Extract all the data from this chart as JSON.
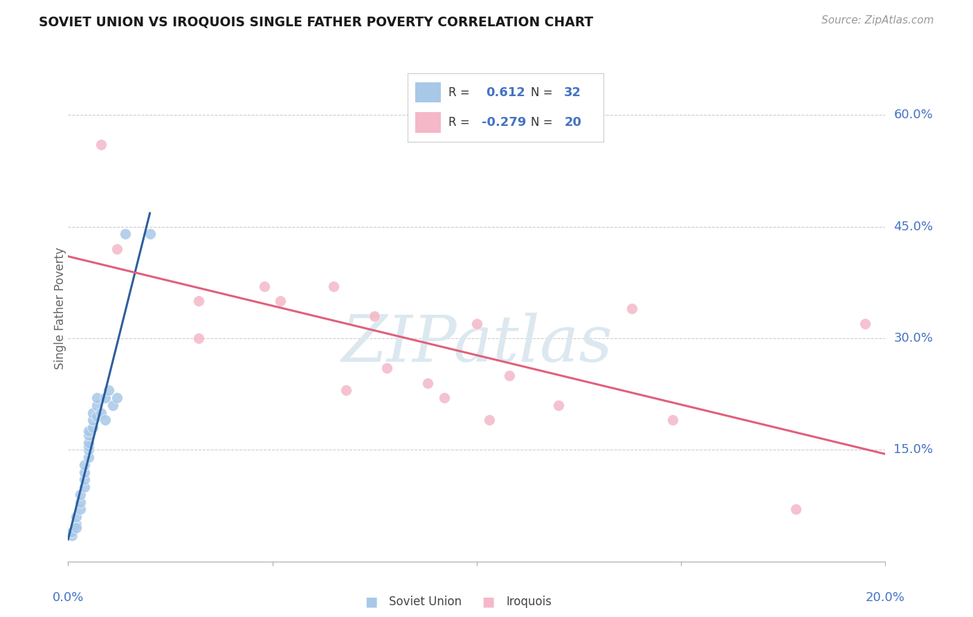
{
  "title": "SOVIET UNION VS IROQUOIS SINGLE FATHER POVERTY CORRELATION CHART",
  "source": "Source: ZipAtlas.com",
  "ylabel": "Single Father Poverty",
  "ytick_labels": [
    "15.0%",
    "30.0%",
    "45.0%",
    "60.0%"
  ],
  "ytick_values": [
    0.15,
    0.3,
    0.45,
    0.6
  ],
  "xlim": [
    0.0,
    0.2
  ],
  "ylim": [
    0.0,
    0.68
  ],
  "legend_blue_R": "0.612",
  "legend_blue_N": "32",
  "legend_pink_R": "-0.279",
  "legend_pink_N": "20",
  "blue_scatter_color": "#a8c8e8",
  "pink_scatter_color": "#f4b8c8",
  "blue_line_color": "#2c5f9e",
  "pink_line_color": "#e0607a",
  "grid_color": "#cccccc",
  "soviet_x": [
    0.001,
    0.001,
    0.002,
    0.002,
    0.002,
    0.003,
    0.003,
    0.003,
    0.004,
    0.004,
    0.004,
    0.004,
    0.005,
    0.005,
    0.005,
    0.005,
    0.005,
    0.005,
    0.006,
    0.006,
    0.006,
    0.007,
    0.007,
    0.007,
    0.008,
    0.009,
    0.009,
    0.01,
    0.011,
    0.012,
    0.014,
    0.02
  ],
  "soviet_y": [
    0.035,
    0.04,
    0.05,
    0.06,
    0.045,
    0.07,
    0.08,
    0.09,
    0.1,
    0.11,
    0.12,
    0.13,
    0.14,
    0.15,
    0.155,
    0.16,
    0.17,
    0.175,
    0.18,
    0.19,
    0.2,
    0.21,
    0.22,
    0.195,
    0.2,
    0.22,
    0.19,
    0.23,
    0.21,
    0.22,
    0.44,
    0.44
  ],
  "iroquois_x": [
    0.008,
    0.012,
    0.032,
    0.032,
    0.048,
    0.052,
    0.065,
    0.068,
    0.075,
    0.078,
    0.088,
    0.092,
    0.1,
    0.103,
    0.108,
    0.12,
    0.138,
    0.148,
    0.178,
    0.195
  ],
  "iroquois_y": [
    0.56,
    0.42,
    0.35,
    0.3,
    0.37,
    0.35,
    0.37,
    0.23,
    0.33,
    0.26,
    0.24,
    0.22,
    0.32,
    0.19,
    0.25,
    0.21,
    0.34,
    0.19,
    0.07,
    0.32
  ],
  "watermark_text": "ZIPatlas",
  "watermark_color": "#dce8f0"
}
